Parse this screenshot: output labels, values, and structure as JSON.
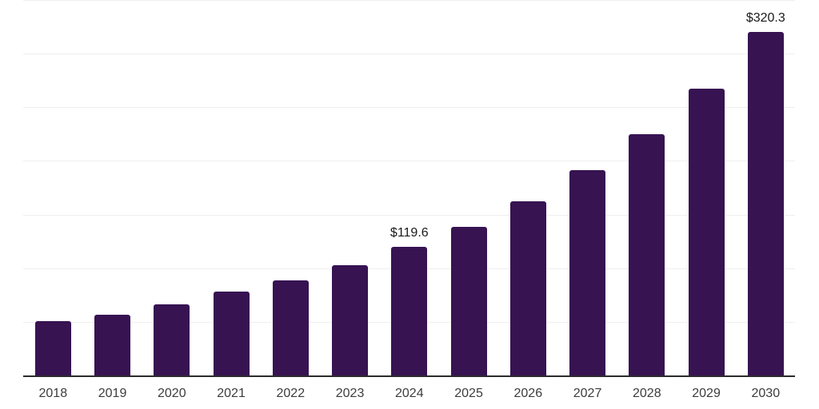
{
  "chart": {
    "background_color": "#ffffff",
    "bar_color": "#371352",
    "gridline_color": "#efefef",
    "axis_line_color": "#2b2b2b",
    "tick_label_color": "#3c3c3c",
    "data_label_color": "#1a1a1a"
  },
  "chart_data": {
    "type": "bar",
    "title": "",
    "xlabel": "",
    "ylabel": "",
    "categories": [
      "2018",
      "2019",
      "2020",
      "2021",
      "2022",
      "2023",
      "2024",
      "2025",
      "2026",
      "2027",
      "2028",
      "2029",
      "2030"
    ],
    "values": [
      50.6,
      56.6,
      66.3,
      78.2,
      88.6,
      102.8,
      119.6,
      138.7,
      162.3,
      191.4,
      224.6,
      267.3,
      320.3
    ],
    "data_labels": [
      null,
      null,
      null,
      null,
      null,
      null,
      "$119.6",
      null,
      null,
      null,
      null,
      null,
      "$320.3"
    ],
    "ylim": [
      0,
      350
    ],
    "gridline_step": 50,
    "grid": true,
    "legend_position": "none",
    "y_axis_tick_labels_visible": false
  }
}
